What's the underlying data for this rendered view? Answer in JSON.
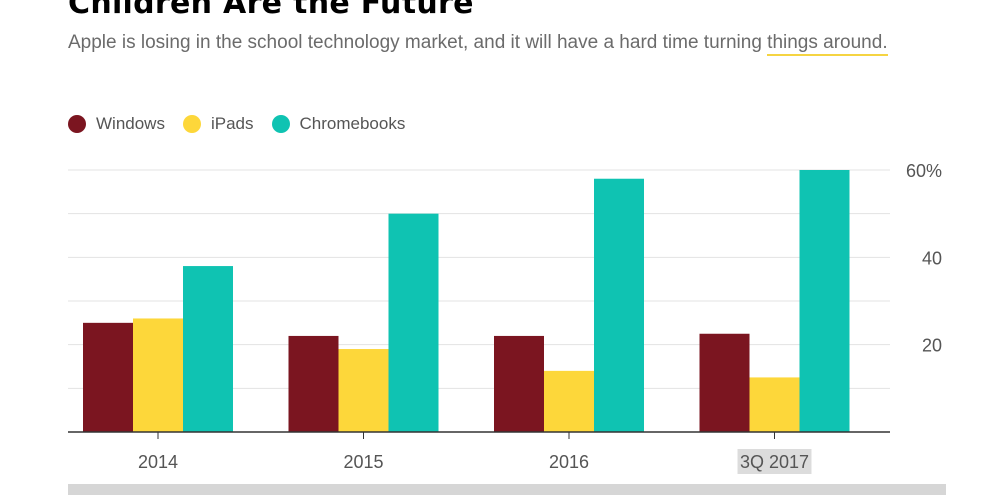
{
  "header": {
    "title": "Children Are the Future",
    "subtitle_part1": "Apple is losing in the school technology market, and it will have a hard time turning ",
    "subtitle_part2": "things around."
  },
  "colors": {
    "windows": "#7b1520",
    "ipads": "#fdd73a",
    "chromebooks": "#0fc3b2",
    "grid": "#e3e3e3",
    "axis": "#333333",
    "tick_label": "#555555",
    "highlight": "#dcdcdc"
  },
  "chart_data": {
    "type": "bar",
    "title": "Children Are the Future",
    "subtitle": "Apple is losing in the school technology market, and it will have a hard time turning things around.",
    "categories": [
      "2014",
      "2015",
      "2016",
      "3Q 2017"
    ],
    "series": [
      {
        "name": "Windows",
        "values": [
          25,
          22,
          22,
          22.5
        ]
      },
      {
        "name": "iPads",
        "values": [
          26,
          19,
          14,
          12.5
        ]
      },
      {
        "name": "Chromebooks",
        "values": [
          38,
          50,
          58,
          60
        ]
      }
    ],
    "ylim": [
      0,
      60
    ],
    "yticks": [
      20,
      40,
      60
    ],
    "ytick_labels": [
      "20",
      "40",
      "60%"
    ],
    "xlabel": "",
    "ylabel": "",
    "grid": true,
    "legend_position": "top-left",
    "highlighted_category": "3Q 2017"
  }
}
